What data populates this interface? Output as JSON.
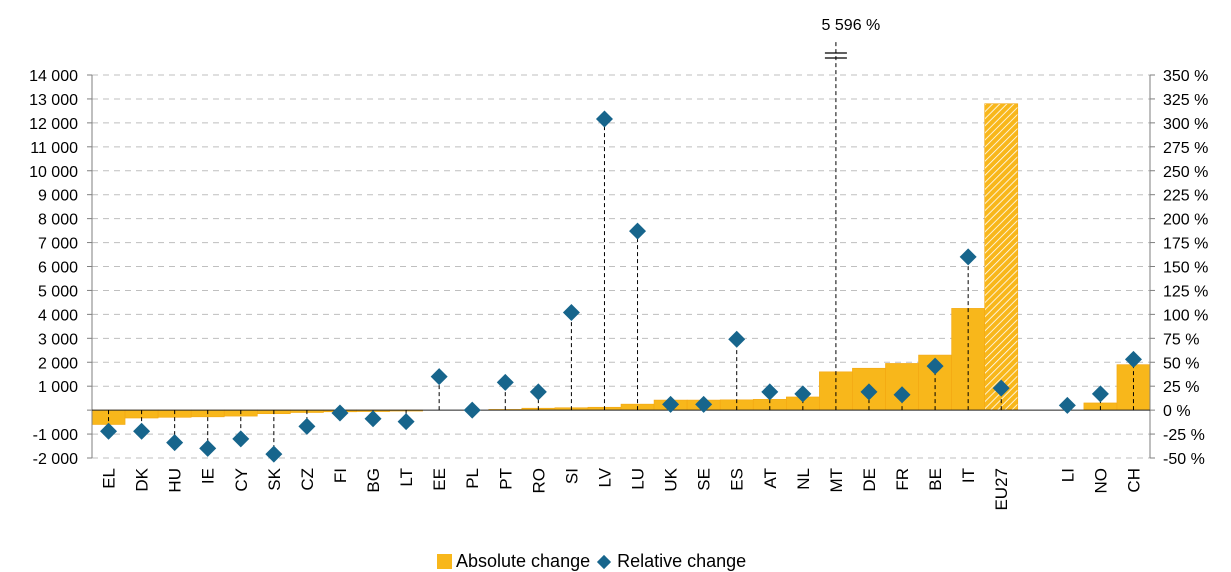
{
  "colors": {
    "bar": "#F8B71B",
    "bar_border": "#F3A712",
    "marker": "#17658C",
    "grid": "#BFBFBF",
    "axis": "#7F7F7F",
    "connector": "#000000"
  },
  "chart_data": {
    "type": "bar",
    "categories": [
      "EL",
      "DK",
      "HU",
      "IE",
      "CY",
      "SK",
      "CZ",
      "FI",
      "BG",
      "LT",
      "EE",
      "PL",
      "PT",
      "RO",
      "SI",
      "LV",
      "LU",
      "UK",
      "SE",
      "ES",
      "AT",
      "NL",
      "MT",
      "DE",
      "FR",
      "BE",
      "IT",
      "EU27",
      "LI",
      "NO",
      "CH"
    ],
    "series": [
      {
        "name": "Absolute change",
        "axis": "left",
        "values": [
          -600,
          -330,
          -300,
          -280,
          -250,
          -150,
          -100,
          -70,
          -60,
          -40,
          0,
          0,
          30,
          80,
          100,
          120,
          250,
          420,
          420,
          430,
          450,
          550,
          1600,
          1750,
          1950,
          2300,
          4250,
          12800,
          0,
          300,
          1900
        ]
      },
      {
        "name": "Relative change",
        "axis": "right",
        "marker": "diamond",
        "values": [
          -22,
          -22,
          -34,
          -40,
          -30,
          -46,
          -17,
          -3,
          -9,
          -12,
          35,
          0,
          29,
          19,
          102,
          304,
          187,
          6,
          6,
          74,
          19,
          17,
          5596,
          19,
          16,
          46,
          160,
          23,
          5,
          17,
          53
        ]
      }
    ],
    "hatched_category": "EU27",
    "gap_before": [
      "LI"
    ],
    "axis_break": {
      "category": "MT",
      "label": "5 596 %"
    },
    "left_axis": {
      "ylim": [
        -2000,
        14000
      ],
      "ticks": [
        -2000,
        -1000,
        0,
        1000,
        2000,
        3000,
        4000,
        5000,
        6000,
        7000,
        8000,
        9000,
        10000,
        11000,
        12000,
        13000,
        14000
      ],
      "tick_labels": [
        "-2 000",
        "-1 000",
        "",
        "1 000",
        "2 000",
        "3 000",
        "4 000",
        "5 000",
        "6 000",
        "7 000",
        "8 000",
        "9 000",
        "10 000",
        "11 000",
        "12 000",
        "13 000",
        "14 000"
      ]
    },
    "right_axis": {
      "ylim": [
        -50,
        350
      ],
      "ticks": [
        -50,
        -25,
        0,
        25,
        50,
        75,
        100,
        125,
        150,
        175,
        200,
        225,
        250,
        275,
        300,
        325,
        350
      ],
      "tick_labels": [
        "-50 %",
        "-25 %",
        "0 %",
        "25 %",
        "50 %",
        "75 %",
        "100 %",
        "125 %",
        "150 %",
        "175 %",
        "200 %",
        "225 %",
        "250 %",
        "275 %",
        "300 %",
        "325 %",
        "350 %"
      ]
    },
    "grid": true,
    "legend_position": "bottom",
    "legend": [
      "Absolute change",
      "Relative change"
    ]
  }
}
